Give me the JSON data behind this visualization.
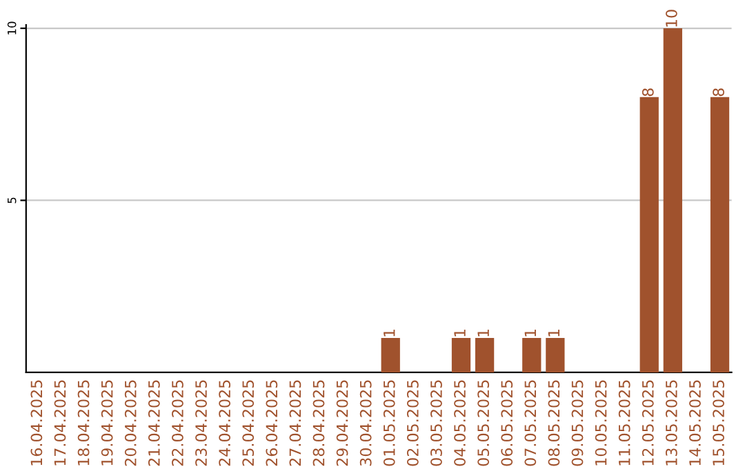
{
  "chart_data": {
    "type": "bar",
    "categories": [
      "16.04.2025",
      "17.04.2025",
      "18.04.2025",
      "19.04.2025",
      "20.04.2025",
      "21.04.2025",
      "22.04.2025",
      "23.04.2025",
      "24.04.2025",
      "25.04.2025",
      "26.04.2025",
      "27.04.2025",
      "28.04.2025",
      "29.04.2025",
      "30.04.2025",
      "01.05.2025",
      "02.05.2025",
      "03.05.2025",
      "04.05.2025",
      "05.05.2025",
      "06.05.2025",
      "07.05.2025",
      "08.05.2025",
      "09.05.2025",
      "10.05.2025",
      "11.05.2025",
      "12.05.2025",
      "13.05.2025",
      "14.05.2025",
      "15.05.2025"
    ],
    "values": [
      0,
      0,
      0,
      0,
      0,
      0,
      0,
      0,
      0,
      0,
      0,
      0,
      0,
      0,
      0,
      1,
      0,
      0,
      1,
      1,
      0,
      1,
      1,
      0,
      0,
      0,
      8,
      10,
      0,
      8
    ],
    "value_labels": [
      null,
      null,
      null,
      null,
      null,
      null,
      null,
      null,
      null,
      null,
      null,
      null,
      null,
      null,
      null,
      "1",
      null,
      null,
      "1",
      "1",
      null,
      "1",
      "1",
      null,
      null,
      null,
      "8",
      "10",
      null,
      "8"
    ],
    "color": "#a0522d",
    "ylim": [
      0,
      10.1
    ],
    "yticks": [
      5,
      10
    ],
    "grid": "y"
  }
}
